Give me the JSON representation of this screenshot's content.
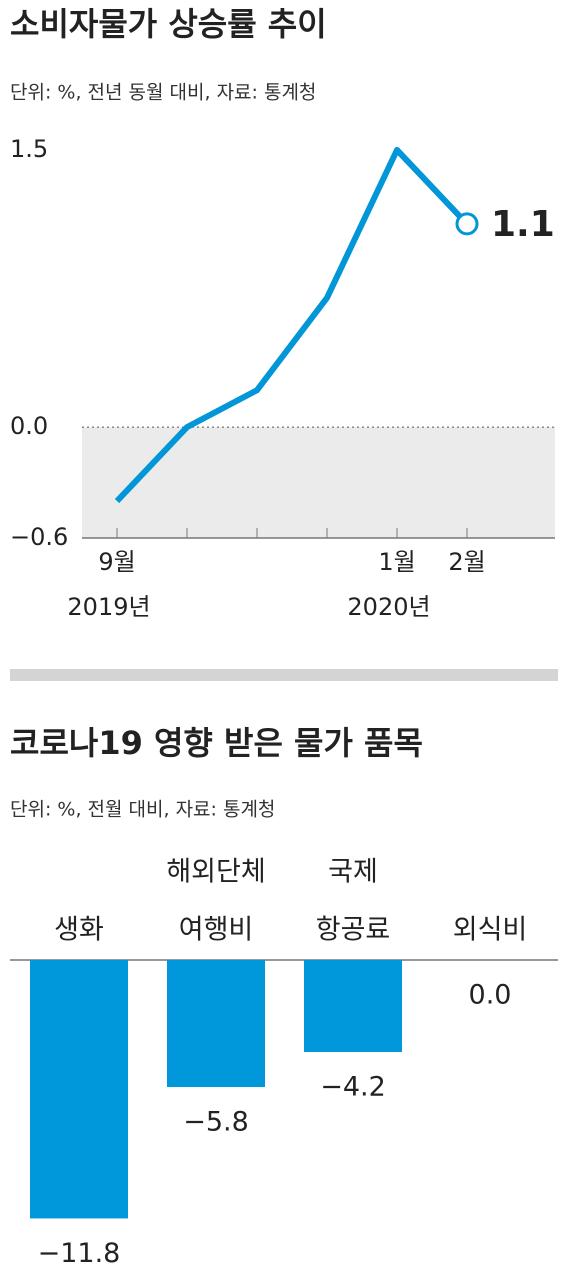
{
  "chart_data": [
    {
      "type": "line",
      "title": "소비자물가 상승률 추이",
      "subtitle": "단위: %, 전년 동월 대비, 자료: 통계청",
      "categories": [
        "9월",
        null,
        null,
        null,
        "1월",
        "2월"
      ],
      "year_labels": [
        "2019년",
        null,
        null,
        null,
        "2020년",
        null
      ],
      "series": [
        {
          "color": "#0096d8",
          "values": [
            -0.4,
            0.0,
            0.2,
            0.7,
            1.5,
            1.1
          ]
        }
      ],
      "ylim": [
        -0.6,
        1.5
      ],
      "yticks": [
        1.5,
        {
          "value": 0,
          "label": "0.0"
        },
        {
          "value": -0.6,
          "label": "−0.6"
        }
      ]
    },
    {
      "type": "bar",
      "title": "코로나19 영향 받은 물가 품목",
      "subtitle": "단위: %, 전월 대비, 자료: 통계청",
      "categories": [
        [
          "생화"
        ],
        [
          "해외단체",
          "여행비"
        ],
        [
          "국제",
          "항공료"
        ],
        [
          "외식비"
        ]
      ],
      "values": [
        -11.8,
        -5.8,
        -4.2,
        0.0
      ],
      "value_labels": [
        "−11.8",
        "−5.8",
        "−4.2",
        "0.0"
      ],
      "color": "#0098da"
    }
  ]
}
